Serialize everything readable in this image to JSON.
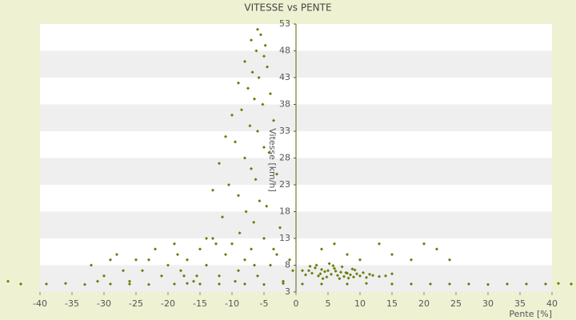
{
  "chart_data": {
    "type": "scatter",
    "title": "VITESSE vs PENTE",
    "x_label": "Pente [%]",
    "y_label": "Vitesse [km/h]",
    "color": "#6b7a00",
    "background": "#eef2d2",
    "grid": true,
    "xlim": [
      -46.25,
      43.75
    ],
    "xticks": [
      -40,
      -35,
      -30,
      -25,
      -20,
      -15,
      -10,
      -5,
      0,
      5,
      10,
      15,
      20,
      25,
      30,
      35,
      40
    ],
    "ylim": [
      3,
      53
    ],
    "yticks": [
      3,
      8,
      13,
      18,
      23,
      28,
      33,
      38,
      43,
      48,
      53
    ],
    "x": [
      -6,
      -5.5,
      -7,
      -4.8,
      -6.2,
      -5,
      -8,
      -4.5,
      -6.8,
      -5.8,
      -9,
      -7.5,
      -4,
      -6.5,
      -5.2,
      -8.5,
      -10,
      -3.5,
      -7.2,
      -6,
      -11,
      -9.5,
      -5,
      -4.2,
      -8,
      -12,
      -7,
      -3,
      -6.3,
      -10.5,
      -13,
      -9,
      -5.7,
      -4.6,
      -7.8,
      -11.5,
      -6.6,
      -2.5,
      -8.8,
      -14,
      -32,
      -30,
      -28,
      -26,
      -25,
      -24,
      -22,
      -21,
      -20,
      -19,
      -18,
      -17,
      -16,
      -15,
      -14,
      -13,
      -12,
      -11,
      -10,
      -9,
      -8,
      -7,
      -6,
      -5,
      -4,
      -3,
      -2,
      -1,
      -31,
      -27,
      -23,
      -18.5,
      -15.5,
      -12.5,
      -9.5,
      -6.5,
      -3.5,
      -0.5,
      -29,
      -17.5,
      2,
      2.5,
      3,
      3.5,
      4,
      4.5,
      5,
      5.5,
      6,
      6.5,
      7,
      7.5,
      8,
      8.5,
      9,
      9.5,
      10,
      11,
      12,
      13,
      2.2,
      3.2,
      4.2,
      5.2,
      6.2,
      7.2,
      8.2,
      9.2,
      10.5,
      1.5,
      3.8,
      4.8,
      5.8,
      6.8,
      7.8,
      8.8,
      11.5,
      14,
      15,
      1,
      4,
      6,
      8,
      10,
      13,
      15,
      18,
      20,
      22,
      24,
      -45,
      -43,
      -39,
      -36,
      -33,
      -29,
      -26,
      -23,
      -19,
      -17,
      -15,
      -12,
      -8,
      -5,
      -2,
      1,
      4,
      8,
      11,
      15,
      18,
      21,
      24,
      27,
      30,
      33,
      36,
      39,
      41,
      43
    ],
    "values": [
      52,
      51,
      50,
      49,
      48,
      47,
      46,
      45,
      44,
      43,
      42,
      41,
      40,
      39,
      38,
      37,
      36,
      35,
      34,
      33,
      32,
      31,
      30,
      29,
      28,
      27,
      26,
      25,
      24,
      23,
      22,
      21,
      20,
      19,
      18,
      17,
      16,
      15,
      14,
      13,
      8,
      6,
      10,
      5,
      9,
      7,
      11,
      6,
      8,
      12,
      7,
      9,
      5,
      11,
      8,
      13,
      6,
      10,
      12,
      7,
      9,
      11,
      6,
      13,
      8,
      10,
      5,
      9,
      5,
      7,
      9,
      10,
      6,
      12,
      5,
      8,
      11,
      7,
      9,
      6,
      7,
      6.5,
      7.5,
      6,
      7.2,
      6.8,
      7,
      6.3,
      7.4,
      6.1,
      6.7,
      5.9,
      6.5,
      6.2,
      5.8,
      6.4,
      6,
      5.7,
      6.1,
      5.9,
      7.8,
      8,
      5.5,
      8.3,
      6.9,
      7.7,
      5.6,
      7.1,
      6.6,
      6.2,
      6.4,
      5.8,
      7.9,
      5.5,
      6.6,
      7.3,
      6.3,
      6,
      6.4,
      7,
      11,
      12,
      10,
      9,
      12,
      10,
      9,
      12,
      11,
      9,
      5,
      4.5,
      4.5,
      4.6,
      4.4,
      4.5,
      4.5,
      4.4,
      4.5,
      4.6,
      4.5,
      4.5,
      4.5,
      4.4,
      4.6,
      4.5,
      4.5,
      4.5,
      4.6,
      4.5,
      4.5,
      4.5,
      4.5,
      4.5,
      4.4,
      4.5,
      4.5,
      4.5,
      4.6,
      4.5
    ]
  }
}
